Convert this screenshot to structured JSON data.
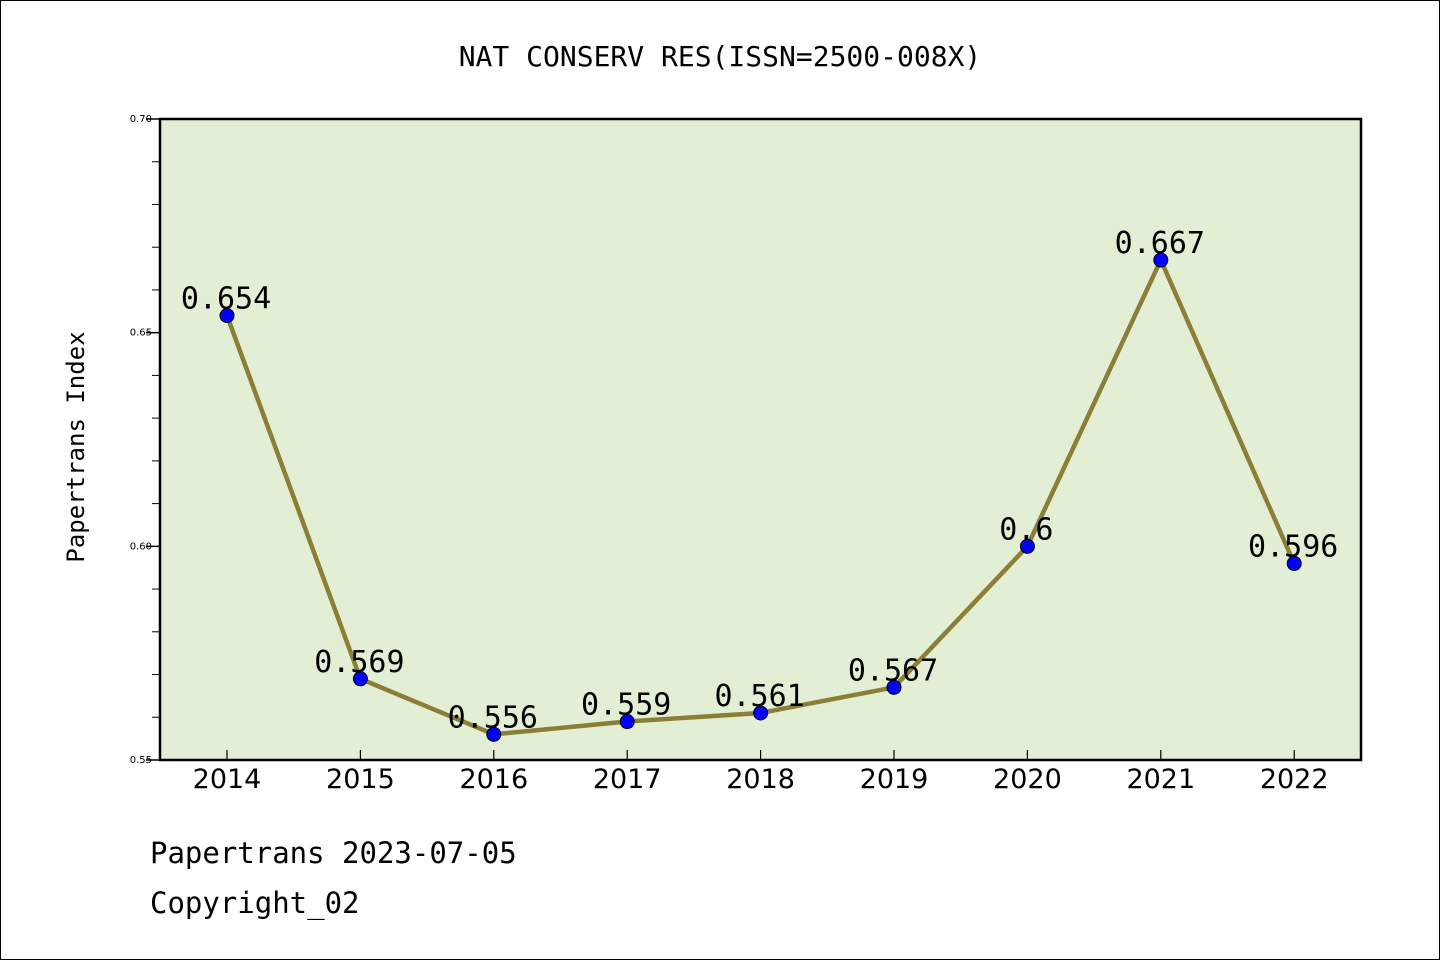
{
  "chart_data": {
    "type": "line",
    "title": "NAT CONSERV RES(ISSN=2500-008X)",
    "xlabel": "",
    "ylabel": "Papertrans Index",
    "categories": [
      "2014",
      "2015",
      "2016",
      "2017",
      "2018",
      "2019",
      "2020",
      "2021",
      "2022"
    ],
    "series": [
      {
        "values": [
          0.654,
          0.569,
          0.556,
          0.559,
          0.561,
          0.567,
          0.6,
          0.667,
          0.596
        ],
        "data_labels": [
          "0.654",
          "0.569",
          "0.556",
          "0.559",
          "0.561",
          "0.567",
          "0.6",
          "0.667",
          "0.596"
        ]
      }
    ],
    "ylim": [
      0.55,
      0.7
    ],
    "yticks": [
      "0.55",
      "0.60",
      "0.65",
      "0.70"
    ],
    "grid": false,
    "colors": {
      "plot_background": "#e2efd5",
      "line": "#8b7e36",
      "marker": "#0000ff"
    }
  },
  "footer": {
    "date_line": "Papertrans 2023-07-05",
    "copyright": "Copyright_02"
  }
}
